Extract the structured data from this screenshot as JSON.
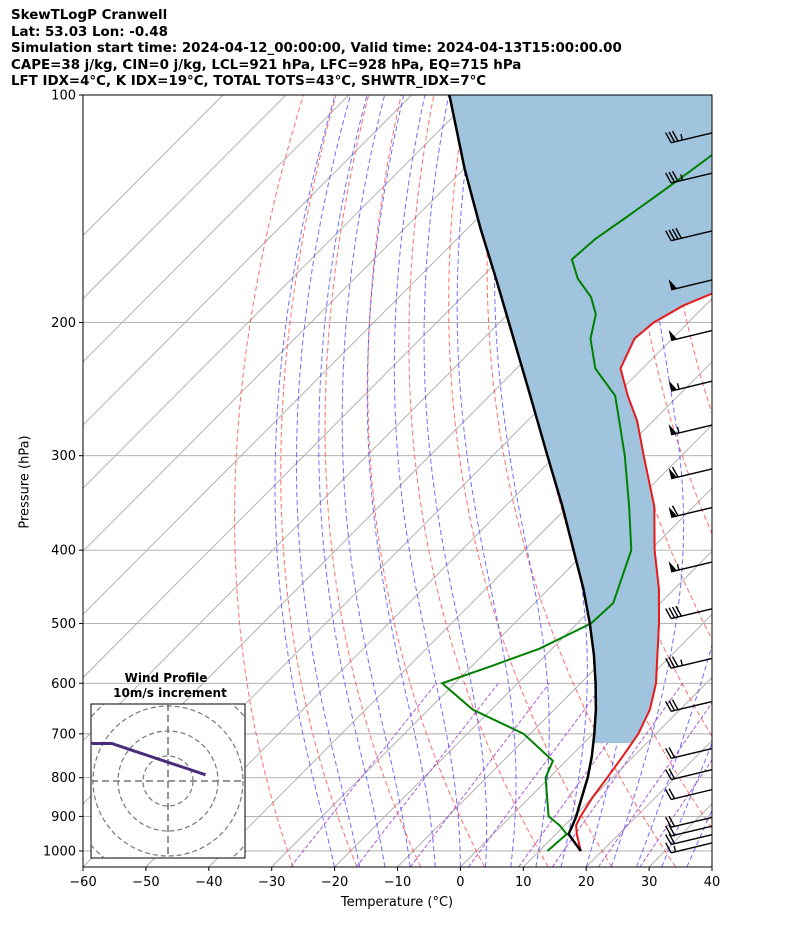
{
  "header": {
    "line1": "SkewTLogP Cranwell",
    "line2": "Lat: 53.03   Lon: -0.48",
    "line3": "Simulation start time: 2024-04-12_00:00:00, Valid time: 2024-04-13T15:00:00.00",
    "line4": "CAPE=38 j/kg, CIN=0 j/kg, LCL=921 hPa, LFC=928 hPa, EQ=715 hPa",
    "line5": "LFT IDX=4°C, K IDX=19°C, TOTAL TOTS=43°C, SHWTR_IDX=7°C"
  },
  "chart_data": {
    "type": "line",
    "xlabel": "Temperature (°C)",
    "ylabel": "Pressure (hPa)",
    "xlim": [
      -60,
      40
    ],
    "ylim": [
      1050,
      100
    ],
    "y_scale": "log",
    "x_ticks": [
      "−60",
      "−50",
      "−40",
      "−30",
      "−20",
      "−10",
      "0",
      "10",
      "20",
      "30",
      "40"
    ],
    "y_ticks": [
      "100",
      "200",
      "300",
      "400",
      "500",
      "600",
      "700",
      "800",
      "900",
      "1000"
    ],
    "grid": true,
    "colors": {
      "temperature": "#e41a1c",
      "dewpoint": "#008000",
      "parcel": "#000000",
      "cape_fill": "#a0c4de",
      "dry_adiabat": "#ff5555",
      "moist_adiabat": "#4a4aff",
      "mixing_ratio": "#9933cc",
      "isotherm": "#aaaaaa"
    },
    "series": [
      {
        "key": "temperature",
        "pressure": [
          1000,
          950,
          925,
          900,
          850,
          800,
          750,
          700,
          650,
          600,
          550,
          500,
          450,
          400,
          350,
          300,
          270,
          250,
          230,
          210,
          200,
          190,
          175,
          165,
          155,
          145,
          135,
          125,
          115,
          108,
          100
        ],
        "values": [
          16.6,
          13.3,
          11.8,
          11.1,
          10.0,
          9.2,
          8.3,
          7.2,
          5.2,
          2.0,
          -2.3,
          -7.0,
          -12.5,
          -19.3,
          -26.3,
          -36.0,
          -42.5,
          -48.0,
          -53.5,
          -56.0,
          -55.5,
          -53.5,
          -47.5,
          -42.0,
          -37.5,
          -36.0,
          -38.0,
          -42.0,
          -45.5,
          -47.8,
          -51.0
        ]
      },
      {
        "key": "dewpoint",
        "pressure": [
          1000,
          950,
          925,
          900,
          850,
          800,
          760,
          700,
          650,
          600,
          570,
          540,
          500,
          470,
          400,
          350,
          300,
          250,
          230,
          210,
          195,
          185,
          175,
          165,
          155,
          145,
          135,
          125,
          115,
          108,
          100
        ],
        "values": [
          11.3,
          11.7,
          9.2,
          6.0,
          2.8,
          -0.6,
          -2.1,
          -11.0,
          -23.0,
          -32.0,
          -27.0,
          -22.0,
          -17.8,
          -17.5,
          -23.0,
          -30.3,
          -39.0,
          -50.0,
          -57.5,
          -63.0,
          -66.0,
          -69.5,
          -74.5,
          -78.5,
          -78.0,
          -76.5,
          -75.0,
          -73.5,
          -72.0,
          -71.0,
          -69.5
        ]
      },
      {
        "key": "parcel",
        "pressure": [
          1000,
          950,
          921,
          900,
          850,
          800,
          750,
          700,
          650,
          600,
          550,
          500,
          450,
          400,
          350,
          300,
          250,
          200,
          175,
          150,
          125,
          100
        ],
        "values": [
          16.6,
          12.0,
          11.1,
          10.4,
          8.3,
          6.1,
          3.4,
          0.2,
          -3.4,
          -7.6,
          -12.4,
          -18.0,
          -24.5,
          -32.2,
          -40.9,
          -51.3,
          -63.5,
          -78.5,
          -87.5,
          -98.0,
          -110.0,
          -124.0
        ]
      }
    ],
    "wind_barbs": [
      {
        "pressure": 1000,
        "knots": 15
      },
      {
        "pressure": 975,
        "knots": 20
      },
      {
        "pressure": 950,
        "knots": 20
      },
      {
        "pressure": 925,
        "knots": 20
      },
      {
        "pressure": 850,
        "knots": 20
      },
      {
        "pressure": 800,
        "knots": 20
      },
      {
        "pressure": 750,
        "knots": 20
      },
      {
        "pressure": 650,
        "knots": 30
      },
      {
        "pressure": 570,
        "knots": 35
      },
      {
        "pressure": 490,
        "knots": 40
      },
      {
        "pressure": 425,
        "knots": 55
      },
      {
        "pressure": 360,
        "knots": 60
      },
      {
        "pressure": 320,
        "knots": 60
      },
      {
        "pressure": 280,
        "knots": 55
      },
      {
        "pressure": 245,
        "knots": 55
      },
      {
        "pressure": 210,
        "knots": 50
      },
      {
        "pressure": 180,
        "knots": 50
      },
      {
        "pressure": 155,
        "knots": 40
      },
      {
        "pressure": 130,
        "knots": 35
      },
      {
        "pressure": 115,
        "knots": 35
      }
    ]
  },
  "inset": {
    "title_line1": "Wind Profile",
    "title_line2": "10m/s increment",
    "hodograph": {
      "u": [
        -23,
        -21,
        -18,
        -15,
        -12,
        -9,
        -6,
        -3,
        0,
        3,
        6
      ],
      "v": [
        -11,
        -9,
        -8,
        -7,
        -6,
        -6,
        -5,
        -4,
        -3,
        -2,
        -1
      ],
      "color": "#4a2b7a"
    }
  }
}
